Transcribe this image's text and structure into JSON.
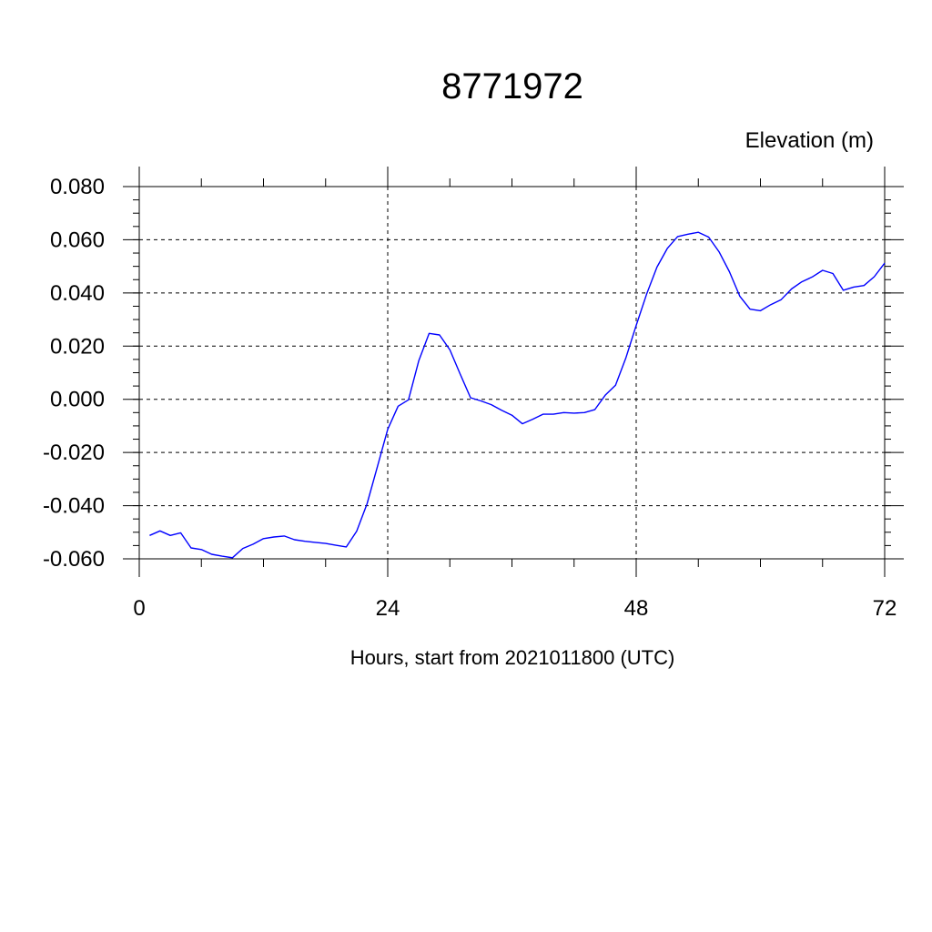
{
  "chart_data": {
    "type": "line",
    "title": "8771972",
    "ylabel": "Elevation (m)",
    "xlabel": "Hours, start from 2021011800 (UTC)",
    "xlim": [
      0,
      72
    ],
    "ylim": [
      -0.06,
      0.08
    ],
    "x_ticks": [
      0,
      24,
      48,
      72
    ],
    "x_tick_labels": [
      "0",
      "24",
      "48",
      "72"
    ],
    "y_ticks": [
      -0.06,
      -0.04,
      -0.02,
      0.0,
      0.02,
      0.04,
      0.06,
      0.08
    ],
    "y_tick_labels": [
      "-0.060",
      "-0.040",
      "-0.020",
      "0.000",
      "0.020",
      "0.040",
      "0.060",
      "0.080"
    ],
    "grid": true,
    "grid_style": "dashed",
    "series_color": "#0000ff",
    "x": [
      1,
      2,
      3,
      4,
      5,
      6,
      7,
      8,
      9,
      10,
      11,
      12,
      13,
      14,
      15,
      16,
      17,
      18,
      19,
      20,
      21,
      22,
      23,
      24,
      25,
      26,
      27,
      28,
      29,
      30,
      31,
      32,
      33,
      34,
      35,
      36,
      37,
      38,
      39,
      40,
      41,
      42,
      43,
      44,
      45,
      46,
      47,
      48,
      49,
      50,
      51,
      52,
      53,
      54,
      55,
      56,
      57,
      58,
      59,
      60,
      61,
      62,
      63,
      64,
      65,
      66,
      67,
      68,
      69,
      70,
      71,
      72
    ],
    "y": [
      -0.0512,
      -0.0495,
      -0.0512,
      -0.0502,
      -0.0559,
      -0.0565,
      -0.0583,
      -0.059,
      -0.0596,
      -0.0561,
      -0.0545,
      -0.0524,
      -0.0518,
      -0.0514,
      -0.0528,
      -0.0534,
      -0.0538,
      -0.0542,
      -0.0549,
      -0.0555,
      -0.0496,
      -0.0393,
      -0.0254,
      -0.0113,
      -0.0026,
      -0.0002,
      0.0145,
      0.0248,
      0.0242,
      0.0186,
      0.0095,
      0.0006,
      -0.0006,
      -0.002,
      -0.0041,
      -0.006,
      -0.0092,
      -0.0075,
      -0.0056,
      -0.0056,
      -0.005,
      -0.0052,
      -0.005,
      -0.0039,
      0.0015,
      0.0053,
      0.0155,
      0.0278,
      0.0395,
      0.0497,
      0.0567,
      0.0612,
      0.0621,
      0.0628,
      0.061,
      0.0555,
      0.048,
      0.0388,
      0.0339,
      0.0333,
      0.0356,
      0.0375,
      0.0415,
      0.0442,
      0.046,
      0.0485,
      0.0473,
      0.041,
      0.0422,
      0.0428,
      0.0461,
      0.0512
    ]
  }
}
